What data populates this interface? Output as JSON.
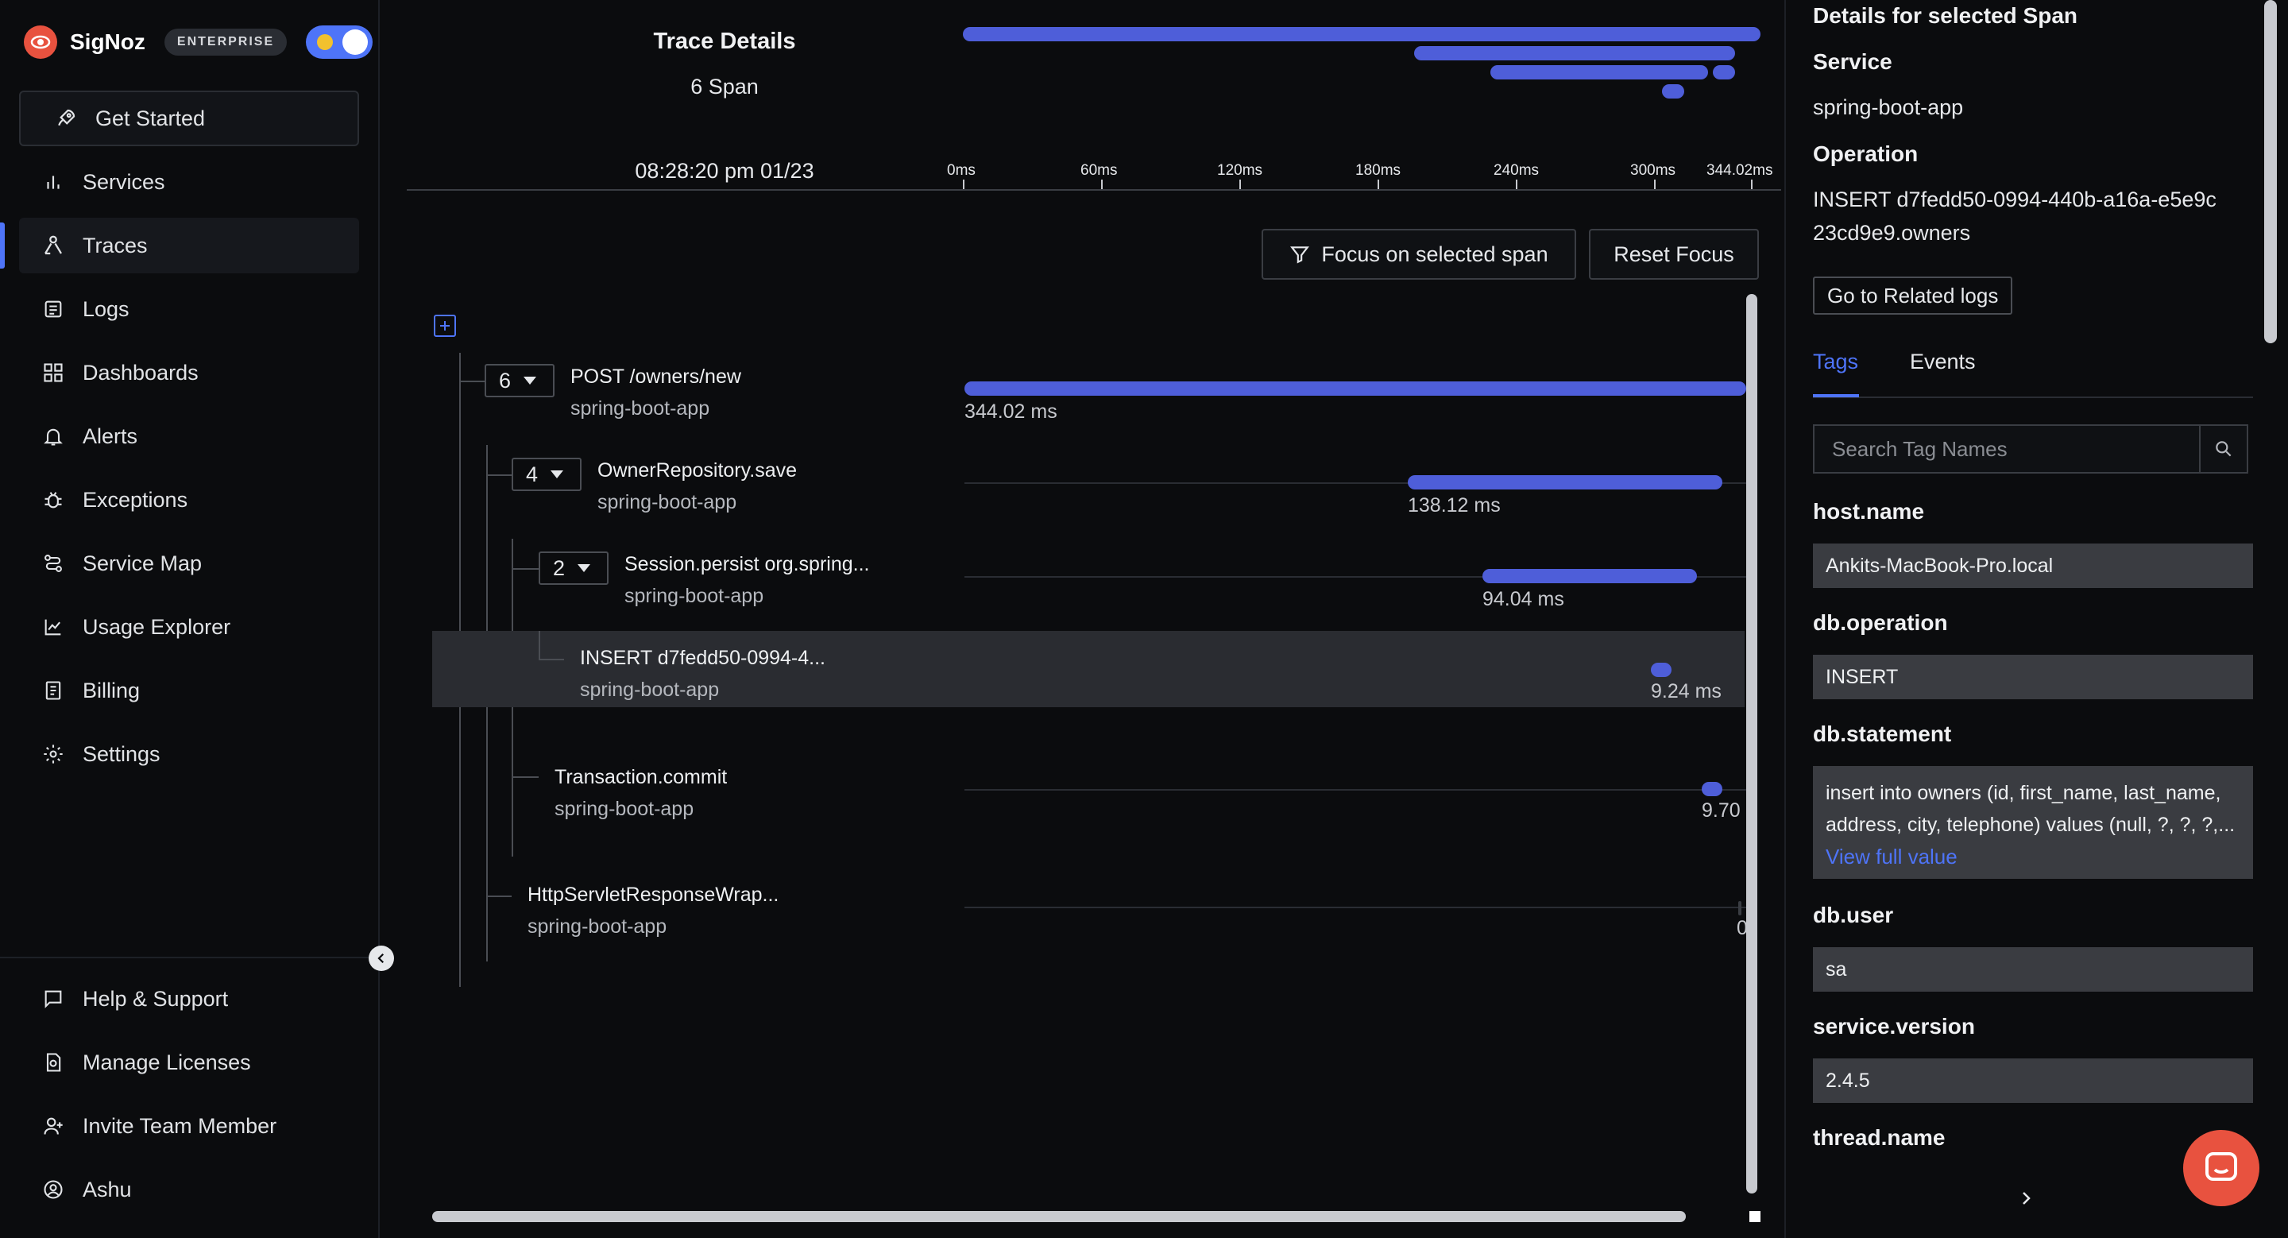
{
  "brand": {
    "name": "SigNoz",
    "badge": "ENTERPRISE"
  },
  "sidebar": {
    "items": [
      {
        "label": "Get Started",
        "icon": "rocket-icon"
      },
      {
        "label": "Services",
        "icon": "bar-chart-icon"
      },
      {
        "label": "Traces",
        "icon": "traces-icon"
      },
      {
        "label": "Logs",
        "icon": "logs-icon"
      },
      {
        "label": "Dashboards",
        "icon": "dashboard-grid-icon"
      },
      {
        "label": "Alerts",
        "icon": "bell-icon"
      },
      {
        "label": "Exceptions",
        "icon": "bug-icon"
      },
      {
        "label": "Service Map",
        "icon": "route-icon"
      },
      {
        "label": "Usage Explorer",
        "icon": "line-chart-icon"
      },
      {
        "label": "Billing",
        "icon": "receipt-icon"
      },
      {
        "label": "Settings",
        "icon": "gear-icon"
      }
    ],
    "bottom_items": [
      {
        "label": "Help & Support",
        "icon": "chat-icon"
      },
      {
        "label": "Manage Licenses",
        "icon": "license-icon"
      },
      {
        "label": "Invite Team Member",
        "icon": "user-plus-icon"
      },
      {
        "label": "Ashu",
        "icon": "user-circle-icon"
      }
    ]
  },
  "trace": {
    "title": "Trace Details",
    "span_count": "6 Span",
    "timestamp": "08:28:20 pm 01/23",
    "axis": [
      "0ms",
      "60ms",
      "120ms",
      "180ms",
      "240ms",
      "300ms",
      "344.02ms"
    ],
    "focus_button": "Focus on selected span",
    "reset_button": "Reset Focus",
    "spans": [
      {
        "count": "6",
        "name": "POST /owners/new",
        "service": "spring-boot-app",
        "duration": "344.02 ms"
      },
      {
        "count": "4",
        "name": "OwnerRepository.save",
        "service": "spring-boot-app",
        "duration": "138.12 ms"
      },
      {
        "count": "2",
        "name": "Session.persist org.spring...",
        "service": "spring-boot-app",
        "duration": "94.04 ms"
      },
      {
        "name": "INSERT d7fedd50-0994-4...",
        "service": "spring-boot-app",
        "duration": "9.24 ms"
      },
      {
        "name": "Transaction.commit",
        "service": "spring-boot-app",
        "duration": "9.70"
      },
      {
        "name": "HttpServletResponseWrap...",
        "service": "spring-boot-app",
        "duration": "0"
      }
    ]
  },
  "panel": {
    "heading": "Details for selected Span",
    "service_label": "Service",
    "service_value": "spring-boot-app",
    "operation_label": "Operation",
    "operation_value": "INSERT d7fedd50-0994-440b-a16a-e5e9c23cd9e9.owners",
    "related_logs": "Go to Related logs",
    "tabs": [
      "Tags",
      "Events"
    ],
    "search_placeholder": "Search Tag Names",
    "tags": [
      {
        "key": "host.name",
        "value": "Ankits-MacBook-Pro.local"
      },
      {
        "key": "db.operation",
        "value": "INSERT"
      },
      {
        "key": "db.statement",
        "value": "insert into owners (id, first_name, last_name, address, city, telephone) values (null, ?, ?, ?,...",
        "more": "View full value"
      },
      {
        "key": "db.user",
        "value": "sa"
      },
      {
        "key": "service.version",
        "value": "2.4.5"
      },
      {
        "key": "thread.name",
        "value": ""
      }
    ]
  },
  "colors": {
    "accent": "#4e74f8",
    "bar": "#4e5ed9",
    "brand": "#e8523f"
  }
}
